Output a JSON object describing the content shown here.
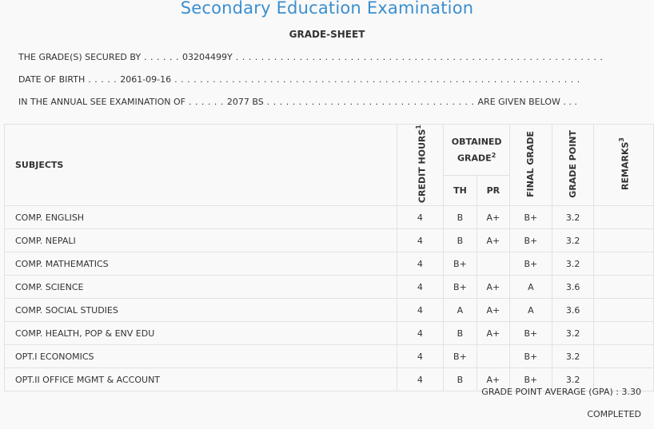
{
  "header": {
    "title": "Secondary Education Examination",
    "subtitle": "GRADE-SHEET"
  },
  "info": {
    "secured_by_label": "THE GRADE(S) SECURED BY",
    "secured_by_dots_before": " . . . . . . ",
    "symbol_no": "03204499Y",
    "secured_by_dots_after": " . . . . . . . . . . . . . . . . . . . . . . . . . . . . . . . . . . . . . . . . . . . . . . . . . . . . . . . . . .",
    "dob_label": "DATE OF BIRTH",
    "dob_dots_before": " . . . . . ",
    "dob": "2061-09-16",
    "dob_dots_after": " . . . . . . . . . . . . . . . . . . . . . . . . . . . . . . . . . . . . . . . . . . . . . . . . . . . . . . . . . . . . . . . .",
    "exam_label": "IN THE ANNUAL SEE EXAMINATION OF",
    "exam_dots_before": " . . . . . . ",
    "exam_year": "2077 BS",
    "exam_dots_after": " . . . . . . . . . . . . . . . . . . . . . . . . . . . . . . . . . ",
    "exam_suffix": "ARE GIVEN BELOW . . ."
  },
  "table": {
    "col_subjects": "SUBJECTS",
    "col_credit": "CREDIT HOURS",
    "col_credit_sup": "1",
    "col_obtained": "OBTAINED GRADE",
    "col_obtained_sup": "2",
    "col_th": "TH",
    "col_pr": "PR",
    "col_final": "FINAL GRADE",
    "col_gp": "GRADE POINT",
    "col_remarks": "REMARKS",
    "col_remarks_sup": "3",
    "rows": [
      {
        "subject": "COMP. ENGLISH",
        "credit": "4",
        "th": "B",
        "pr": "A+",
        "final": "B+",
        "gp": "3.2",
        "remarks": ""
      },
      {
        "subject": "COMP. NEPALI",
        "credit": "4",
        "th": "B",
        "pr": "A+",
        "final": "B+",
        "gp": "3.2",
        "remarks": ""
      },
      {
        "subject": "COMP. MATHEMATICS",
        "credit": "4",
        "th": "B+",
        "pr": "",
        "final": "B+",
        "gp": "3.2",
        "remarks": ""
      },
      {
        "subject": "COMP. SCIENCE",
        "credit": "4",
        "th": "B+",
        "pr": "A+",
        "final": "A",
        "gp": "3.6",
        "remarks": ""
      },
      {
        "subject": "COMP. SOCIAL STUDIES",
        "credit": "4",
        "th": "A",
        "pr": "A+",
        "final": "A",
        "gp": "3.6",
        "remarks": ""
      },
      {
        "subject": "COMP. HEALTH, POP & ENV EDU",
        "credit": "4",
        "th": "B",
        "pr": "A+",
        "final": "B+",
        "gp": "3.2",
        "remarks": ""
      },
      {
        "subject": "OPT.I ECONOMICS",
        "credit": "4",
        "th": "B+",
        "pr": "",
        "final": "B+",
        "gp": "3.2",
        "remarks": ""
      },
      {
        "subject": "OPT.II OFFICE MGMT & ACCOUNT",
        "credit": "4",
        "th": "B",
        "pr": "A+",
        "final": "B+",
        "gp": "3.2",
        "remarks": ""
      }
    ]
  },
  "footer": {
    "gpa_label": "GRADE POINT AVERAGE (GPA) : ",
    "gpa_value": "3.30",
    "status": "COMPLETED"
  },
  "colors": {
    "title": "#3a8fd0",
    "background": "#f9f9f9",
    "border": "#e2e2e2"
  }
}
